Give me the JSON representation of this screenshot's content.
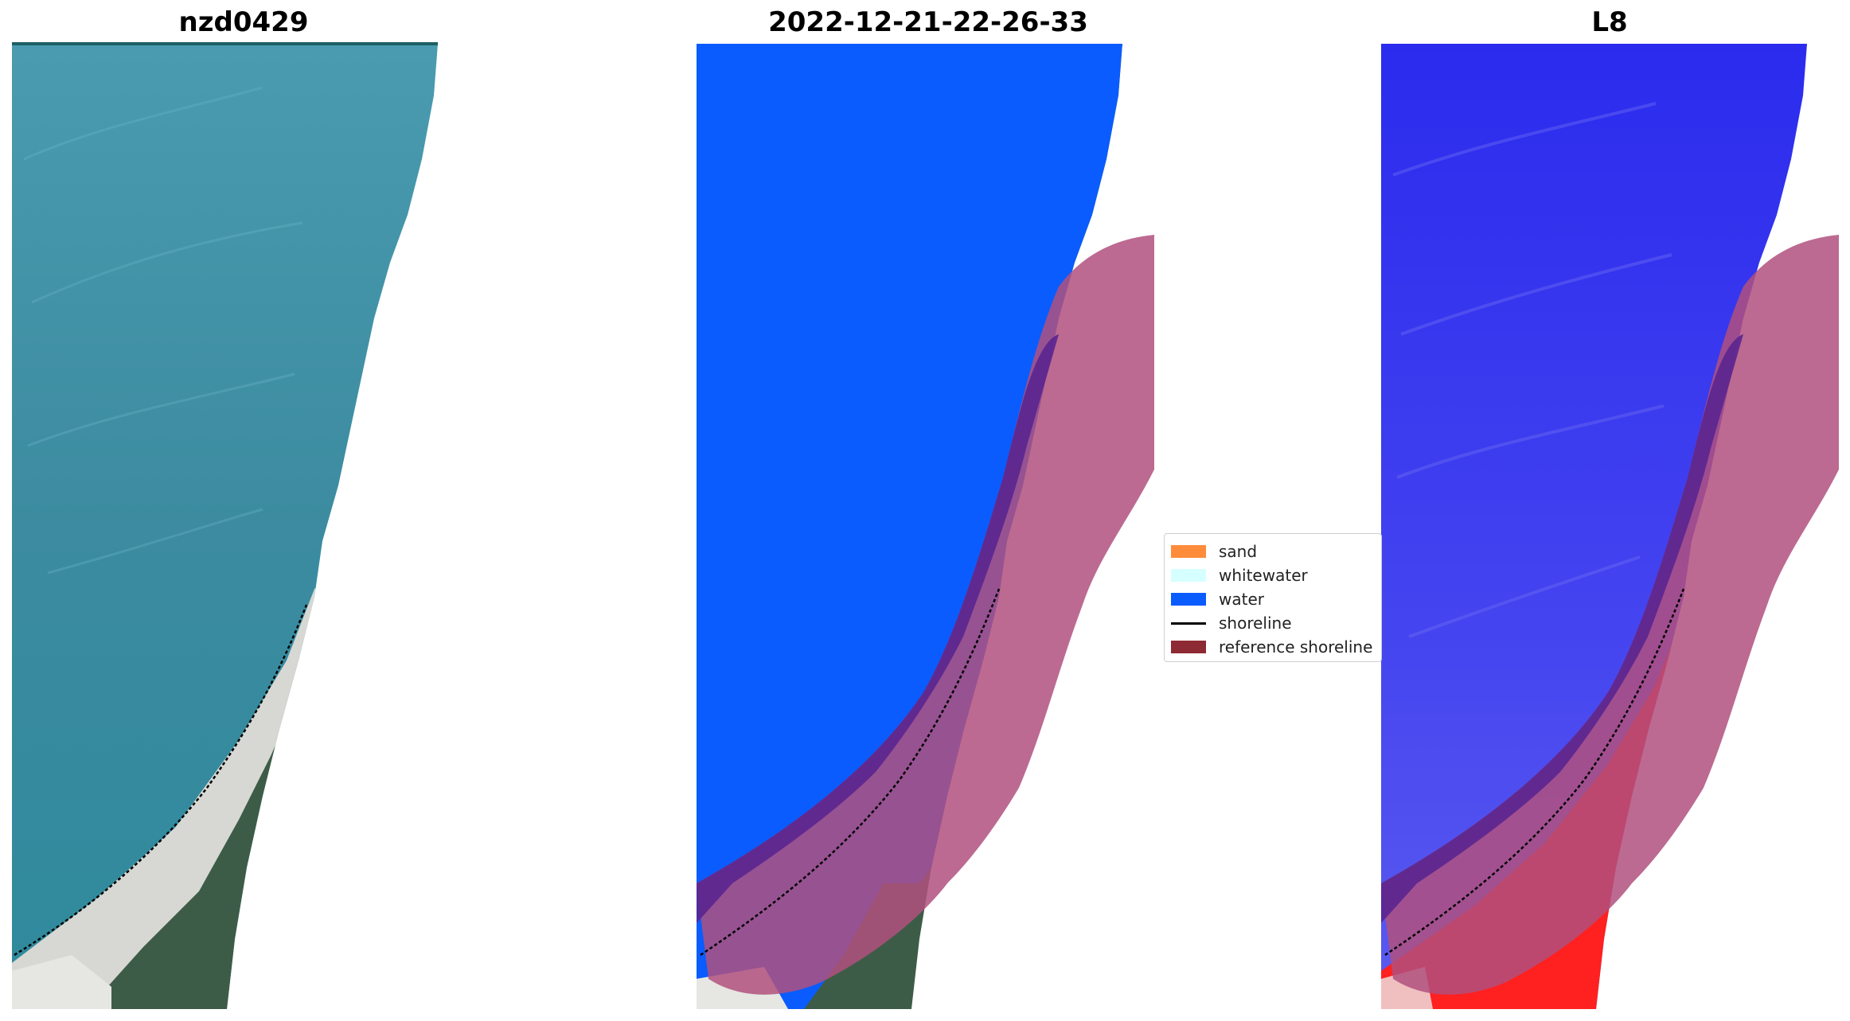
{
  "panels": [
    {
      "title": "nzd0429"
    },
    {
      "title": "2022-12-21-22-26-33"
    },
    {
      "title": "L8"
    }
  ],
  "legend": {
    "items": [
      {
        "label": "sand",
        "color": "#ff8c3a"
      },
      {
        "label": "whitewater",
        "color": "#d6ffff"
      },
      {
        "label": "water",
        "color": "#0a5cff"
      },
      {
        "label": "shoreline",
        "color": "#000000"
      },
      {
        "label": "reference shoreline",
        "color": "#8e2a33"
      }
    ]
  },
  "colors": {
    "ocean": "#3f8ea2",
    "water_class": "#0a5cff",
    "water_index": "#2d2de8",
    "land_index": "#ff2020",
    "reference_band": "#b0507e",
    "overlap": "#5a2590",
    "vegetation": "#3c5a48",
    "sand": "#d9d9d4"
  }
}
